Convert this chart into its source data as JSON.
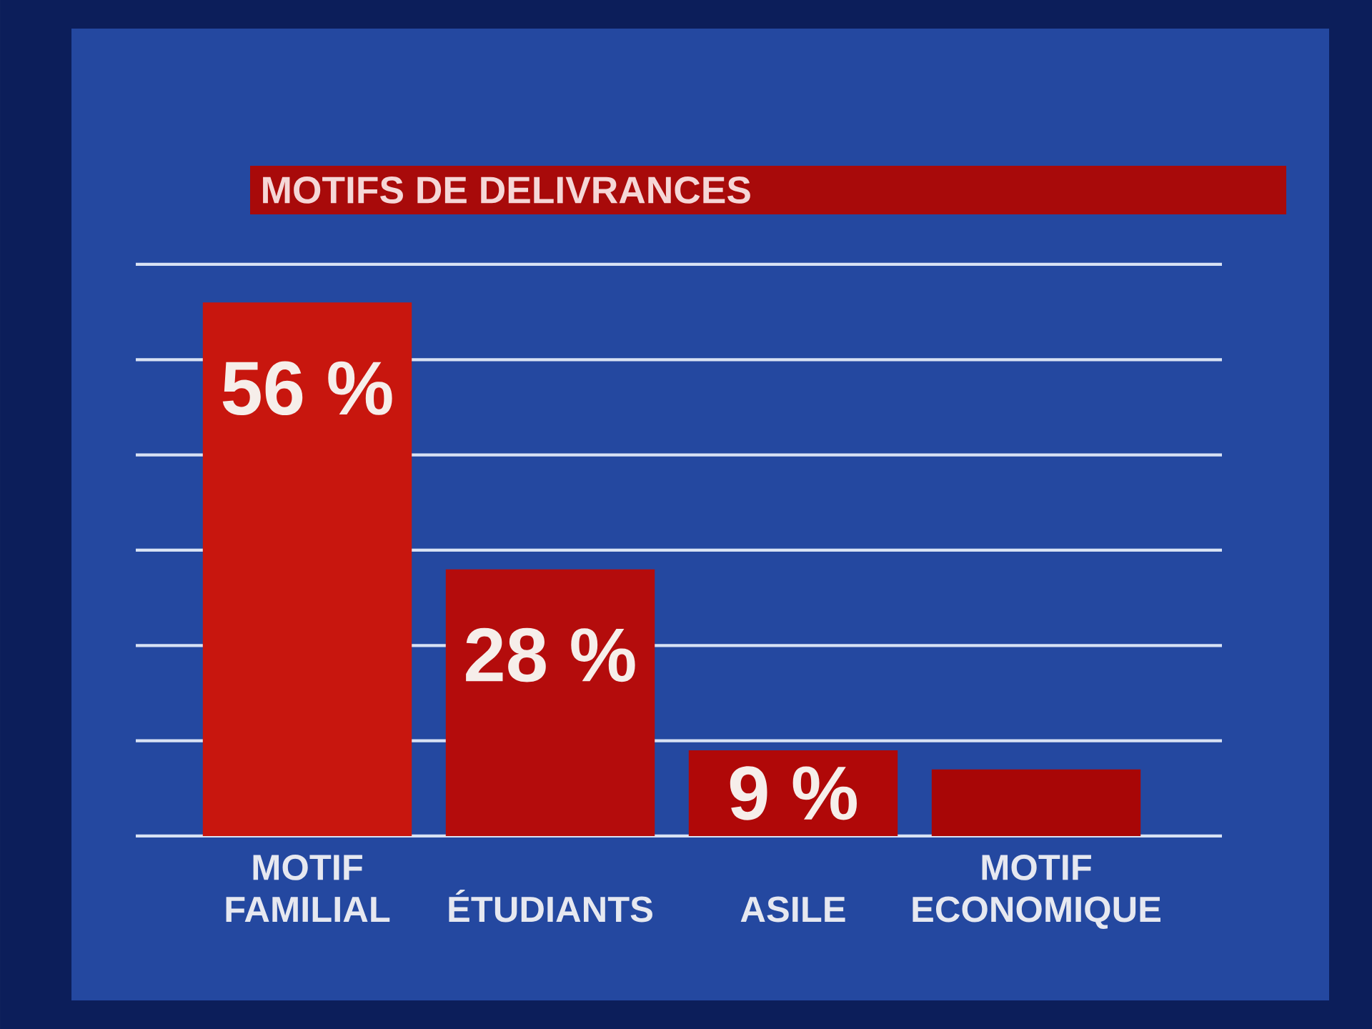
{
  "chart_data": {
    "type": "bar",
    "title": "MOTIFS DE DELIVRANCES",
    "categories": [
      "MOTIF FAMILIAL",
      "ÉTUDIANTS",
      "ASILE",
      "MOTIF ECONOMIQUE"
    ],
    "values": [
      56,
      28,
      9,
      7
    ],
    "colors": [
      "#c8160e",
      "#b40c0c",
      "#b00808",
      "#a80606"
    ],
    "value_labels": [
      "56 %",
      "28 %",
      "9 %",
      null
    ],
    "ylim": [
      0,
      60
    ],
    "yticks": [
      {
        "value": 0,
        "label": null
      },
      {
        "value": 10,
        "label": null
      },
      {
        "value": 20,
        "label": null
      },
      {
        "value": 30,
        "label": null
      },
      {
        "value": 40,
        "label": null
      },
      {
        "value": 50,
        "label": null
      },
      {
        "value": 60,
        "label": null
      }
    ],
    "grid": "y",
    "tick_labels": "x"
  }
}
